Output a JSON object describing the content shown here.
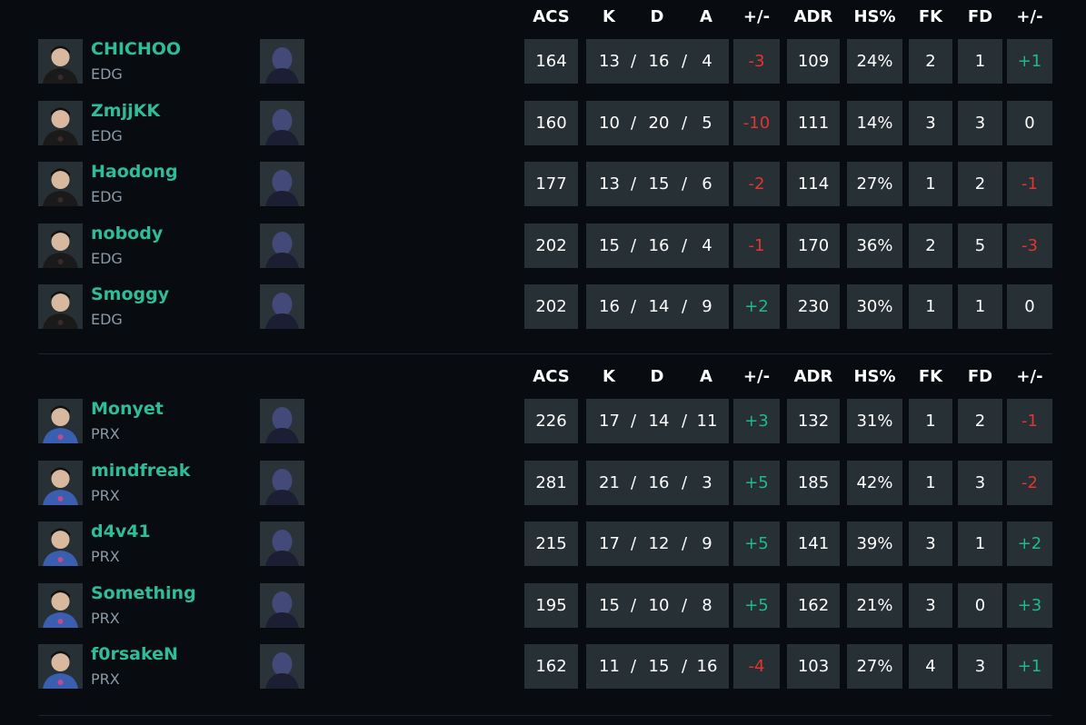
{
  "columns": [
    "ACS",
    "K",
    "D",
    "A",
    "+/-",
    "ADR",
    "HS%",
    "FK",
    "FD",
    "+/-"
  ],
  "colors": {
    "name": "#2ebd98",
    "positive": "#20b894",
    "negative": "#e3342f",
    "cell": "#263035",
    "background": "#080b10"
  },
  "teams": [
    {
      "players": [
        {
          "name": "CHICHOO",
          "team": "EDG",
          "agent": "agent-cowboy-hat",
          "acs": "164",
          "k": "13",
          "d": "16",
          "a": "4",
          "pm": "-3",
          "adr": "109",
          "hs": "24%",
          "fk": "2",
          "fd": "1",
          "fpm": "+1"
        },
        {
          "name": "ZmjjKK",
          "team": "EDG",
          "agent": "agent-orange-beanie",
          "acs": "160",
          "k": "10",
          "d": "20",
          "a": "5",
          "pm": "-10",
          "adr": "111",
          "hs": "14%",
          "fk": "3",
          "fd": "3",
          "fpm": "0"
        },
        {
          "name": "Haodong",
          "team": "EDG",
          "agent": "agent-hooded-purple",
          "acs": "177",
          "k": "13",
          "d": "15",
          "a": "6",
          "pm": "-2",
          "adr": "114",
          "hs": "27%",
          "fk": "1",
          "fd": "2",
          "fpm": "-1"
        },
        {
          "name": "nobody",
          "team": "EDG",
          "agent": "agent-blonde",
          "acs": "202",
          "k": "15",
          "d": "16",
          "a": "4",
          "pm": "-1",
          "adr": "170",
          "hs": "36%",
          "fk": "2",
          "fd": "5",
          "fpm": "-3"
        },
        {
          "name": "Smoggy",
          "team": "EDG",
          "agent": "agent-robot-blue",
          "acs": "202",
          "k": "16",
          "d": "14",
          "a": "9",
          "pm": "+2",
          "adr": "230",
          "hs": "30%",
          "fk": "1",
          "fd": "1",
          "fpm": "0"
        }
      ]
    },
    {
      "players": [
        {
          "name": "Monyet",
          "team": "PRX",
          "agent": "agent-hooded-purple",
          "acs": "226",
          "k": "17",
          "d": "14",
          "a": "11",
          "pm": "+3",
          "adr": "132",
          "hs": "31%",
          "fk": "1",
          "fd": "2",
          "fpm": "-1"
        },
        {
          "name": "mindfreak",
          "team": "PRX",
          "agent": "agent-masked-dark",
          "acs": "281",
          "k": "21",
          "d": "16",
          "a": "3",
          "pm": "+5",
          "adr": "185",
          "hs": "42%",
          "fk": "1",
          "fd": "3",
          "fpm": "-2"
        },
        {
          "name": "d4v41",
          "team": "PRX",
          "agent": "agent-dark-hair-green",
          "acs": "215",
          "k": "17",
          "d": "12",
          "a": "9",
          "pm": "+5",
          "adr": "141",
          "hs": "39%",
          "fk": "3",
          "fd": "1",
          "fpm": "+2"
        },
        {
          "name": "Something",
          "team": "PRX",
          "agent": "agent-green-hair",
          "acs": "195",
          "k": "15",
          "d": "10",
          "a": "8",
          "pm": "+5",
          "adr": "162",
          "hs": "21%",
          "fk": "3",
          "fd": "0",
          "fpm": "+3"
        },
        {
          "name": "f0rsakeN",
          "team": "PRX",
          "agent": "agent-robot-blue",
          "acs": "162",
          "k": "11",
          "d": "15",
          "a": "16",
          "pm": "-4",
          "adr": "103",
          "hs": "27%",
          "fk": "4",
          "fd": "3",
          "fpm": "+1"
        }
      ]
    }
  ]
}
